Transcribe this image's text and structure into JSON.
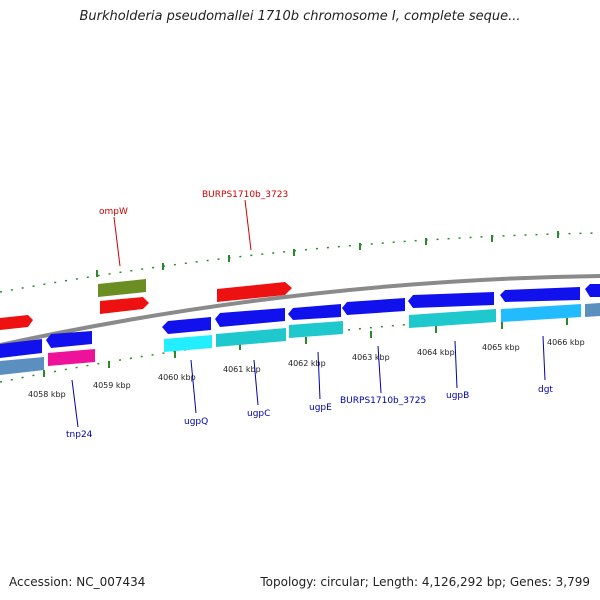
{
  "title": "Burkholderia pseudomallei 1710b chromosome I, complete seque...",
  "accession": "Accession: NC_007434",
  "topology": "Topology: circular; Length: 4,126,292 bp; Genes: 3,799",
  "colors": {
    "backbone": "#888888",
    "tick": "#2a8a2a",
    "label_top": "#cc0000",
    "label_bottom": "#0000aa",
    "gene_red": "#ee1111",
    "gene_olive": "#6b8e23",
    "gene_blue": "#1111ee",
    "gene_cyan": "#1ec8cc",
    "gene_lightcyan": "#22eeff",
    "gene_steel": "#5b8fbf",
    "gene_magenta": "#ee1199",
    "gene_sky": "#22bbff"
  },
  "kbp_labels": [
    "4058 kbp",
    "4059 kbp",
    "4060 kbp",
    "4061 kbp",
    "4062 kbp",
    "4063 kbp",
    "4064 kbp",
    "4065 kbp",
    "4066 kbp"
  ],
  "top_labels": [
    "ompW",
    "BURPS1710b_3723"
  ],
  "bottom_labels": [
    "tnp24",
    "ugpQ",
    "ugpC",
    "ugpE",
    "BURPS1710b_3725",
    "ugpB",
    "dgt"
  ]
}
